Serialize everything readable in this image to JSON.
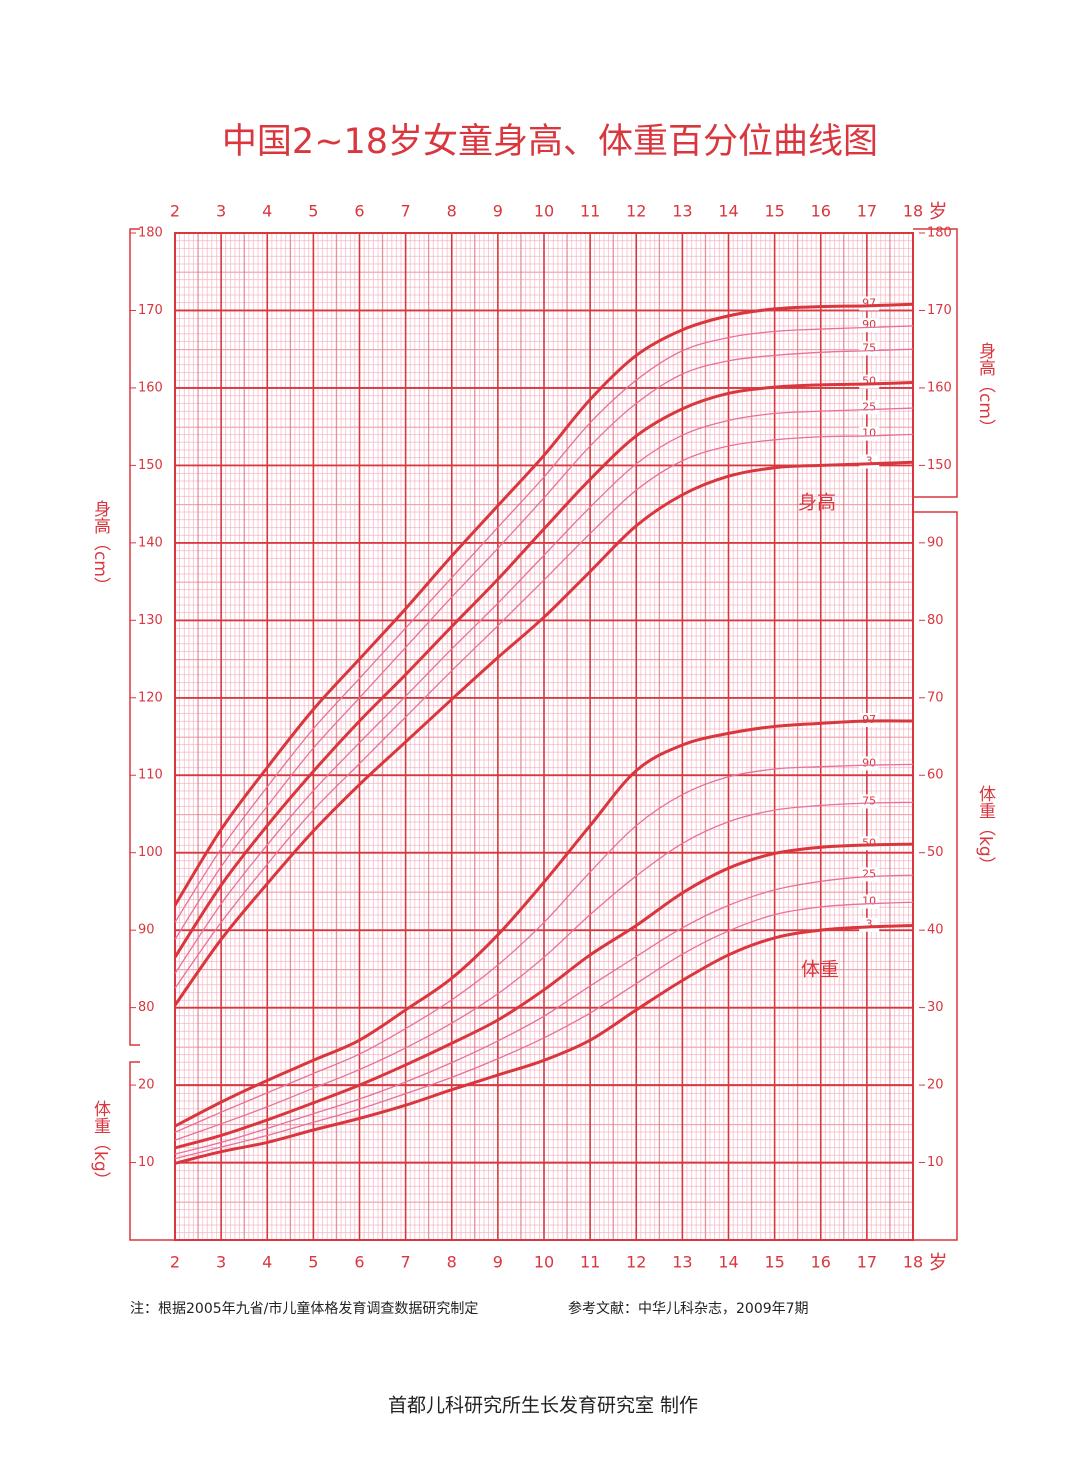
{
  "chart_data": {
    "type": "line",
    "title": "中国2~18岁女童身高、体重百分位曲线图",
    "x_unit": "岁",
    "x": [
      2,
      3,
      4,
      5,
      6,
      7,
      8,
      9,
      10,
      11,
      12,
      13,
      14,
      15,
      16,
      17,
      18
    ],
    "xlim": [
      2,
      18
    ],
    "xticks": [
      2,
      3,
      4,
      5,
      6,
      7,
      8,
      9,
      10,
      11,
      12,
      13,
      14,
      15,
      16,
      17,
      18
    ],
    "ylabel": "身高（cm）",
    "ylim": [
      50,
      180
    ],
    "yticks": [
      80,
      90,
      100,
      110,
      120,
      130,
      140,
      150,
      160,
      170,
      180
    ],
    "yticks_right": [
      150,
      160,
      170,
      180
    ],
    "y2label": "体重（kg）",
    "y2lim": [
      0,
      130
    ],
    "y2ticks": [
      10,
      20,
      30,
      40,
      50,
      60,
      70,
      80,
      90
    ],
    "y2ticks_left": [
      10,
      20
    ],
    "grid": true,
    "curve_labels": [
      "身高",
      "体重"
    ],
    "series": [
      {
        "name": "97",
        "color": "#d9363e",
        "bold": true,
        "values": [
          93.2,
          103,
          111,
          118.5,
          125,
          131.5,
          138.3,
          144.8,
          151.3,
          158.5,
          164.2,
          167.5,
          169.3,
          170.2,
          170.5,
          170.6,
          170.8
        ]
      },
      {
        "name": "90",
        "color": "#e8709a",
        "bold": false,
        "values": [
          91,
          100.5,
          108.5,
          116,
          122.5,
          129,
          135.5,
          142,
          148.5,
          155.5,
          161,
          164.8,
          166.5,
          167.3,
          167.6,
          167.8,
          168
        ]
      },
      {
        "name": "75",
        "color": "#e8709a",
        "bold": false,
        "values": [
          88.8,
          98.2,
          106,
          113.5,
          120,
          126.5,
          133,
          139.3,
          145.8,
          152.5,
          158,
          161.8,
          163.5,
          164.2,
          164.6,
          164.8,
          165
        ]
      },
      {
        "name": "50",
        "color": "#d9363e",
        "bold": true,
        "values": [
          86.5,
          95.8,
          103.5,
          110.5,
          117,
          123,
          129.2,
          135.3,
          141.8,
          148.2,
          153.8,
          157.3,
          159.3,
          160.1,
          160.4,
          160.5,
          160.7
        ]
      },
      {
        "name": "25",
        "color": "#e8709a",
        "bold": false,
        "values": [
          84.4,
          93.4,
          101,
          108,
          114.2,
          120.2,
          126.3,
          132.2,
          138.4,
          144.6,
          150.2,
          153.9,
          155.8,
          156.7,
          157,
          157.2,
          157.4
        ]
      },
      {
        "name": "10",
        "color": "#e8709a",
        "bold": false,
        "values": [
          82.5,
          91,
          98.5,
          105.5,
          111.5,
          117.5,
          123.5,
          129.3,
          135.2,
          141.2,
          146.8,
          150.6,
          152.5,
          153.3,
          153.7,
          153.8,
          154
        ]
      },
      {
        "name": "3",
        "color": "#d9363e",
        "bold": true,
        "values": [
          80.3,
          88.8,
          96,
          102.8,
          108.8,
          114.3,
          119.8,
          125.2,
          130.4,
          136.3,
          142.2,
          146.2,
          148.6,
          149.7,
          150,
          150.2,
          150.4
        ]
      },
      {
        "name": "97",
        "axis": "y2",
        "color": "#d9363e",
        "bold": true,
        "values": [
          14.7,
          17.8,
          20.6,
          23.2,
          25.8,
          29.7,
          33.8,
          39.4,
          46.2,
          53.5,
          60.6,
          63.9,
          65.4,
          66.3,
          66.7,
          67,
          67
        ]
      },
      {
        "name": "90",
        "axis": "y2",
        "color": "#e8709a",
        "bold": false,
        "values": [
          13.9,
          16.5,
          19,
          21.5,
          24,
          27.3,
          31,
          35.5,
          41,
          47.5,
          53.5,
          57.5,
          59.8,
          60.8,
          61.1,
          61.3,
          61.4
        ]
      },
      {
        "name": "75",
        "axis": "y2",
        "color": "#e8709a",
        "bold": false,
        "values": [
          12.9,
          15,
          17.2,
          19.6,
          22,
          24.8,
          28,
          31.8,
          36.5,
          42,
          47,
          51.2,
          54,
          55.5,
          56.1,
          56.4,
          56.5
        ]
      },
      {
        "name": "50",
        "axis": "y2",
        "color": "#d9363e",
        "bold": true,
        "values": [
          11.9,
          13.5,
          15.5,
          17.7,
          20,
          22.6,
          25.4,
          28.4,
          32.3,
          36.8,
          40.6,
          44.8,
          48,
          49.9,
          50.7,
          51,
          51.1
        ]
      },
      {
        "name": "25",
        "axis": "y2",
        "color": "#e8709a",
        "bold": false,
        "values": [
          11.1,
          12.6,
          14.4,
          16.3,
          18.2,
          20.4,
          22.9,
          25.7,
          28.9,
          32.8,
          36.6,
          40.3,
          43.2,
          45.2,
          46.3,
          46.9,
          47.1
        ]
      },
      {
        "name": "10",
        "axis": "y2",
        "color": "#e8709a",
        "bold": false,
        "values": [
          10.5,
          12,
          13.5,
          15.2,
          16.9,
          18.9,
          21,
          23.4,
          26.1,
          29.3,
          33.1,
          36.9,
          39.9,
          42,
          43,
          43.4,
          43.6
        ]
      },
      {
        "name": "3",
        "axis": "y2",
        "color": "#d9363e",
        "bold": true,
        "values": [
          9.9,
          11.4,
          12.6,
          14.2,
          15.7,
          17.4,
          19.4,
          21.3,
          23.2,
          25.8,
          29.7,
          33.5,
          36.8,
          39,
          40,
          40.4,
          40.6
        ]
      }
    ],
    "note": "注：根据2005年九省/市儿童体格发育调查数据研究制定",
    "reference": "参考文献：中华儿科杂志，2009年7期",
    "footer": "首都儿科研究所生长发育研究室 制作"
  }
}
